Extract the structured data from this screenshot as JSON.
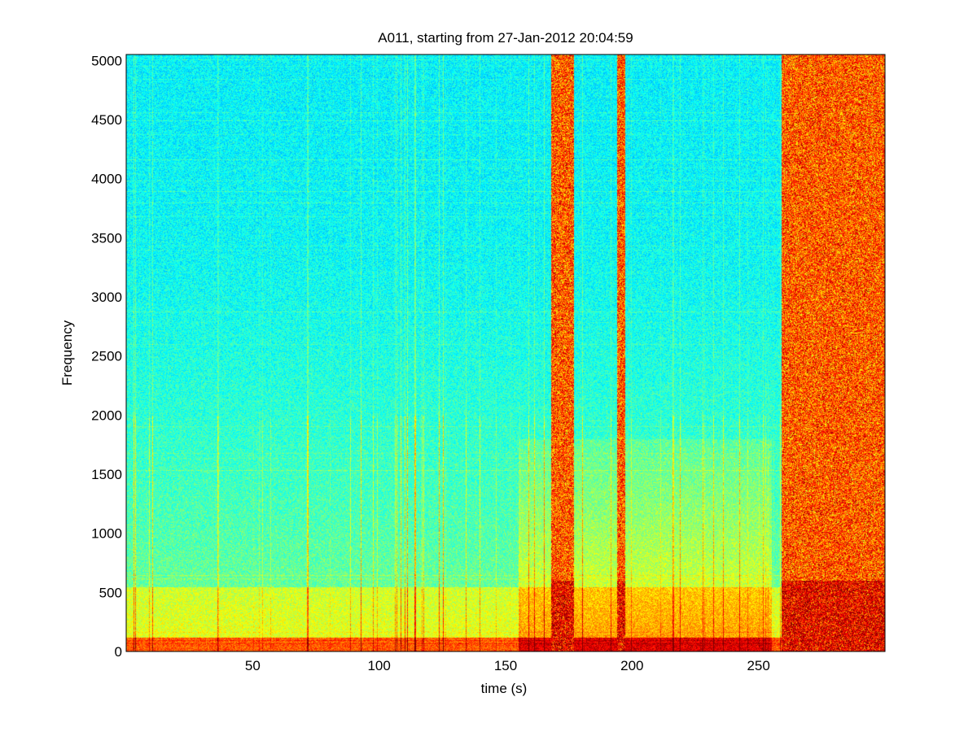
{
  "chart_data": {
    "type": "heatmap",
    "title": "A011, starting from 27-Jan-2012 20:04:59",
    "xlabel": "time (s)",
    "ylabel": "Frequency",
    "xlim": [
      0,
      300
    ],
    "ylim": [
      0,
      5050
    ],
    "xticks": [
      50,
      100,
      150,
      200,
      250
    ],
    "yticks": [
      0,
      500,
      1000,
      1500,
      2000,
      2500,
      3000,
      3500,
      4000,
      4500,
      5000
    ],
    "colormap": "jet",
    "colors": {
      "low": "#00e5ff",
      "mid": "#3cf0a0",
      "high": "#ffff00",
      "max": "#e02000"
    },
    "features": {
      "low_band_max_freq": 120,
      "mid_band_max_freq": 550,
      "broadband_events": [
        {
          "t_start": 168,
          "t_end": 177,
          "label": "broadband"
        },
        {
          "t_start": 194,
          "t_end": 197,
          "label": "broadband"
        },
        {
          "t_start": 259,
          "t_end": 300,
          "label": "broadband"
        }
      ],
      "elevated_region": {
        "t_start": 155,
        "t_end": 255,
        "freq_max": 1800
      }
    }
  }
}
